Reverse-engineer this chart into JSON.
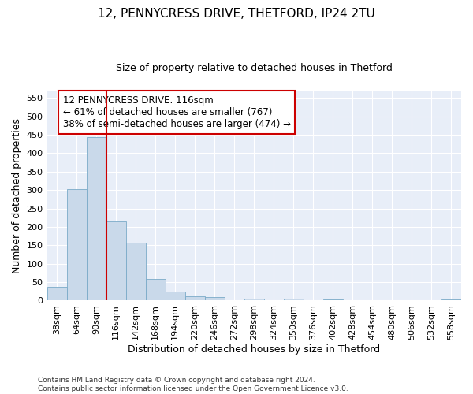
{
  "title1": "12, PENNYCRESS DRIVE, THETFORD, IP24 2TU",
  "title2": "Size of property relative to detached houses in Thetford",
  "xlabel": "Distribution of detached houses by size in Thetford",
  "ylabel": "Number of detached properties",
  "footnote": "Contains HM Land Registry data © Crown copyright and database right 2024.\nContains public sector information licensed under the Open Government Licence v3.0.",
  "bin_labels": [
    "38sqm",
    "64sqm",
    "90sqm",
    "116sqm",
    "142sqm",
    "168sqm",
    "194sqm",
    "220sqm",
    "246sqm",
    "272sqm",
    "298sqm",
    "324sqm",
    "350sqm",
    "376sqm",
    "402sqm",
    "428sqm",
    "454sqm",
    "480sqm",
    "506sqm",
    "532sqm",
    "558sqm"
  ],
  "bar_heights": [
    37,
    302,
    443,
    215,
    157,
    58,
    25,
    12,
    10,
    0,
    5,
    0,
    6,
    0,
    4,
    0,
    0,
    0,
    0,
    0,
    4
  ],
  "bar_color": "#c9d9ea",
  "bar_edge_color": "#7aaac8",
  "vline_x": 2.5,
  "vline_color": "#cc0000",
  "ylim": [
    0,
    570
  ],
  "yticks": [
    0,
    50,
    100,
    150,
    200,
    250,
    300,
    350,
    400,
    450,
    500,
    550
  ],
  "annotation_box_text": "12 PENNYCRESS DRIVE: 116sqm\n← 61% of detached houses are smaller (767)\n38% of semi-detached houses are larger (474) →",
  "annotation_box_color": "#cc0000",
  "annotation_box_fill": "white",
  "background_color": "#e8eef8",
  "grid_color": "#ffffff",
  "title1_fontsize": 11,
  "title2_fontsize": 9,
  "xlabel_fontsize": 9,
  "ylabel_fontsize": 9,
  "tick_fontsize": 8,
  "annot_fontsize": 8.5,
  "footnote_fontsize": 6.5
}
